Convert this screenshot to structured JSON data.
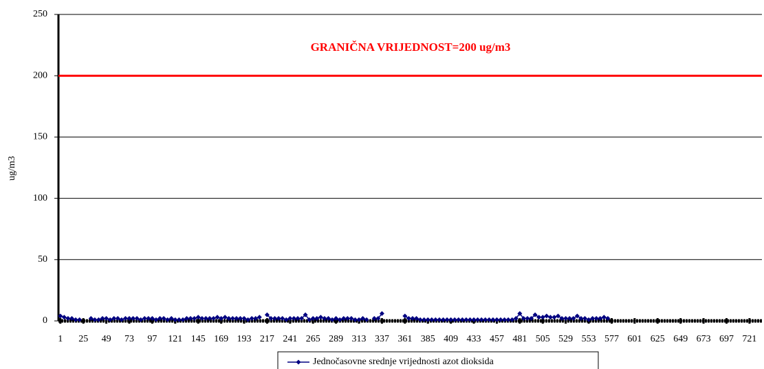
{
  "chart_data": {
    "type": "line",
    "annotation": "GRANIČNA VRIJEDNOST=200 ug/m3",
    "reference_line": {
      "value": 200,
      "color": "#ff0000"
    },
    "y_label": "ug/m3",
    "xlim": [
      -1,
      734
    ],
    "xticks": [
      1,
      25,
      49,
      73,
      97,
      121,
      145,
      169,
      193,
      217,
      241,
      265,
      289,
      313,
      337,
      361,
      385,
      409,
      433,
      457,
      481,
      505,
      529,
      553,
      577,
      601,
      625,
      649,
      673,
      697,
      721
    ],
    "ylim": [
      0,
      250
    ],
    "yticks": [
      0,
      50,
      100,
      150,
      200,
      250
    ],
    "grid": true,
    "legend": "bottom",
    "series": [
      {
        "name": "Jednočasovne srednje vrijednosti azot dioksida",
        "color": "#000080",
        "x": [
          1,
          5,
          9,
          13,
          17,
          21,
          25,
          29,
          33,
          37,
          41,
          45,
          49,
          53,
          57,
          61,
          65,
          69,
          73,
          77,
          81,
          85,
          89,
          93,
          97,
          101,
          105,
          109,
          113,
          117,
          121,
          125,
          129,
          133,
          137,
          141,
          145,
          149,
          153,
          157,
          161,
          165,
          169,
          173,
          177,
          181,
          185,
          189,
          193,
          197,
          201,
          205,
          209,
          213,
          217,
          221,
          225,
          229,
          233,
          237,
          241,
          245,
          249,
          253,
          257,
          261,
          265,
          269,
          273,
          277,
          281,
          285,
          289,
          293,
          297,
          301,
          305,
          309,
          313,
          317,
          321,
          325,
          329,
          333,
          337,
          341,
          345,
          349,
          353,
          357,
          361,
          365,
          369,
          373,
          377,
          381,
          385,
          389,
          393,
          397,
          401,
          405,
          409,
          413,
          417,
          421,
          425,
          429,
          433,
          437,
          441,
          445,
          449,
          453,
          457,
          461,
          465,
          469,
          473,
          477,
          481,
          485,
          489,
          493,
          497,
          501,
          505,
          509,
          513,
          517,
          521,
          525,
          529,
          533,
          537,
          541,
          545,
          549,
          553,
          557,
          561,
          565,
          569,
          573
        ],
        "values": [
          4,
          3,
          2,
          2,
          1,
          1,
          null,
          null,
          2,
          1,
          1,
          2,
          2,
          1,
          2,
          2,
          1,
          2,
          2,
          2,
          2,
          1,
          2,
          2,
          2,
          1,
          2,
          2,
          1,
          2,
          1,
          1,
          1,
          2,
          2,
          2,
          3,
          2,
          2,
          2,
          2,
          3,
          2,
          3,
          2,
          2,
          2,
          2,
          2,
          1,
          2,
          2,
          3,
          null,
          5,
          2,
          2,
          2,
          2,
          1,
          2,
          2,
          2,
          2,
          5,
          1,
          2,
          2,
          3,
          2,
          2,
          1,
          2,
          1,
          2,
          2,
          2,
          1,
          1,
          2,
          1,
          null,
          2,
          2,
          6,
          null,
          null,
          null,
          null,
          null,
          4,
          2,
          2,
          2,
          1,
          1,
          1,
          1,
          1,
          1,
          1,
          1,
          1,
          1,
          1,
          1,
          1,
          1,
          1,
          1,
          1,
          1,
          1,
          1,
          1,
          1,
          1,
          1,
          1,
          2,
          6,
          2,
          2,
          2,
          5,
          3,
          3,
          4,
          3,
          3,
          4,
          2,
          2,
          2,
          2,
          4,
          2,
          2,
          1,
          2,
          2,
          2,
          3,
          2
        ]
      }
    ]
  }
}
